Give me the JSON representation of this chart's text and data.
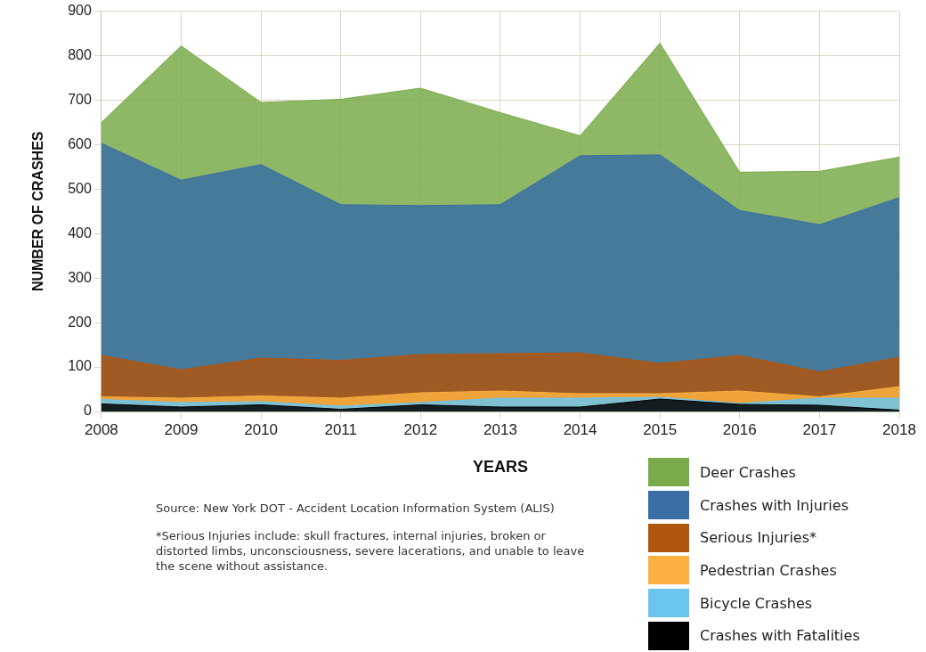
{
  "chart_data": {
    "type": "area",
    "xlabel": "YEARS",
    "ylabel": "NUMBER OF CRASHES",
    "categories": [
      "2008",
      "2009",
      "2010",
      "2011",
      "2012",
      "2013",
      "2014",
      "2015",
      "2016",
      "2017",
      "2018"
    ],
    "series": [
      {
        "name": "Deer Crashes",
        "color": "#7aab4a",
        "values": [
          650,
          822,
          695,
          702,
          727,
          672,
          620,
          828,
          538,
          540,
          572
        ]
      },
      {
        "name": "Crashes with Injuries",
        "color": "#3a6ea5",
        "values": [
          603,
          520,
          555,
          465,
          463,
          465,
          575,
          577,
          452,
          420,
          481
        ]
      },
      {
        "name": "Serious Injuries*",
        "color": "#b0560f",
        "values": [
          126,
          94,
          120,
          115,
          128,
          130,
          132,
          108,
          126,
          89,
          122
        ]
      },
      {
        "name": "Pedestrian Crashes",
        "color": "#fbb040",
        "values": [
          33,
          30,
          35,
          30,
          42,
          46,
          40,
          40,
          46,
          33,
          56
        ]
      },
      {
        "name": "Bicycle Crashes",
        "color": "#6cc5ee",
        "values": [
          27,
          20,
          22,
          12,
          20,
          30,
          30,
          32,
          18,
          30,
          30
        ]
      },
      {
        "name": "Crashes with Fatalities",
        "color": "#000000",
        "values": [
          17,
          10,
          15,
          5,
          15,
          10,
          10,
          28,
          16,
          14,
          3
        ]
      }
    ],
    "ylim": [
      0,
      900
    ],
    "yticks": [
      0,
      100,
      200,
      300,
      400,
      500,
      600,
      700,
      800,
      900
    ],
    "grid": true,
    "legend": "bottom right",
    "annotations": [
      "Source: New York DOT - Accident Location Information System (ALIS)",
      "*Serious Injuries include: skull fractures, internal injuries, broken or distorted limbs, unconsciousness, severe lacerations, and unable to leave the scene without assistance."
    ]
  }
}
